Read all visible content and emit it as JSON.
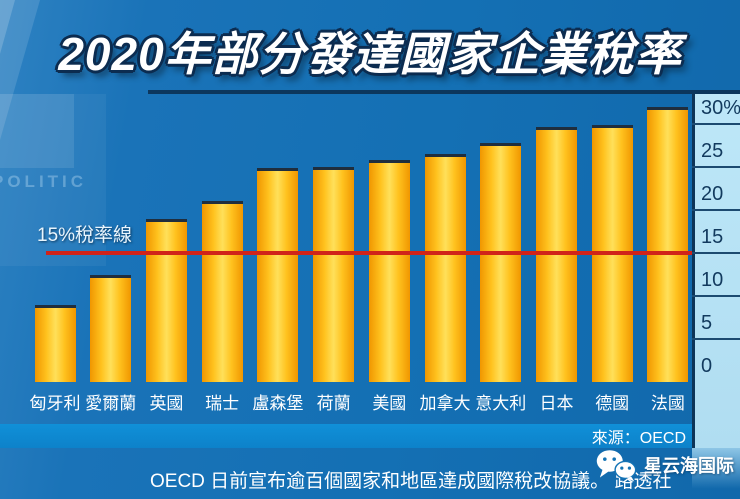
{
  "title": "2020年部分發達國家企業稅率",
  "background_watermark": "POLITIC",
  "chart_data": {
    "type": "bar",
    "title": "2020年部分發達國家企業稅率",
    "categories": [
      "匈牙利",
      "愛爾蘭",
      "英國",
      "瑞士",
      "盧森堡",
      "荷蘭",
      "美國",
      "加拿大",
      "意大利",
      "日本",
      "德國",
      "法國"
    ],
    "values": [
      9,
      12.5,
      19,
      21.1,
      24.9,
      25,
      25.8,
      26.5,
      27.8,
      29.7,
      29.9,
      32
    ],
    "unit": "%",
    "xlabel": "",
    "ylabel": "",
    "ylim": [
      0,
      33
    ],
    "grid": false,
    "legend": "none",
    "axis_side": "right",
    "y_ticks": [
      {
        "value": 30,
        "label": "30%"
      },
      {
        "value": 25,
        "label": "25"
      },
      {
        "value": 20,
        "label": "20"
      },
      {
        "value": 15,
        "label": "15"
      },
      {
        "value": 10,
        "label": "10"
      },
      {
        "value": 5,
        "label": "5"
      },
      {
        "value": 0,
        "label": "0"
      }
    ],
    "reference_line": {
      "value": 15,
      "label": "15%稅率線"
    },
    "colors": {
      "background": "#1470b4",
      "bar_edge": "#f09600",
      "bar_mid": "#ffc21e",
      "bar_center": "#ffe05a",
      "bar_cap": "#1f2e3e",
      "axis_panel": "#b9e4f6",
      "axis_text": "#123a5e",
      "reference_line": "#d0231a",
      "label_text": "#ffffff"
    }
  },
  "source_label": "來源：OECD",
  "footer": {
    "caption": "OECD 日前宣布逾百個國家和地區達成國際稅改協議。 路透社",
    "brand_name": "星云海国际",
    "brand_icon": "wechat-icon"
  }
}
